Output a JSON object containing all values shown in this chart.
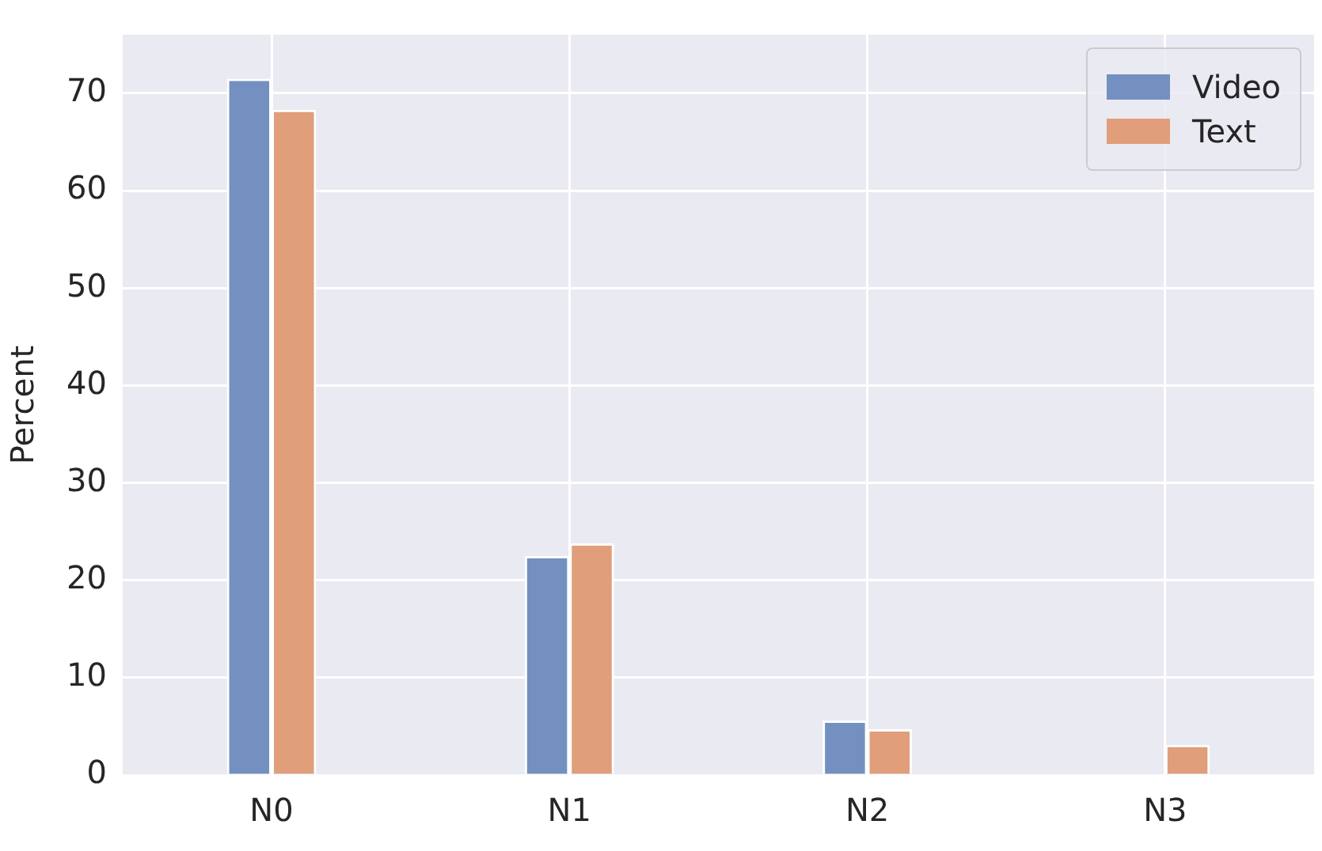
{
  "chart_data": {
    "type": "bar",
    "ylabel": "Percent",
    "categories": [
      "N0",
      "N1",
      "N2",
      "N3"
    ],
    "series": [
      {
        "name": "Video",
        "color": "#7490c0",
        "values": [
          71.5,
          22.5,
          5.6,
          0
        ]
      },
      {
        "name": "Text",
        "color": "#e09e7a",
        "values": [
          68.3,
          23.8,
          4.7,
          3.1
        ]
      }
    ],
    "ylim": [
      0,
      76
    ],
    "yticks": [
      0,
      10,
      20,
      30,
      40,
      50,
      60,
      70
    ],
    "grid": true,
    "legend": "top right"
  }
}
